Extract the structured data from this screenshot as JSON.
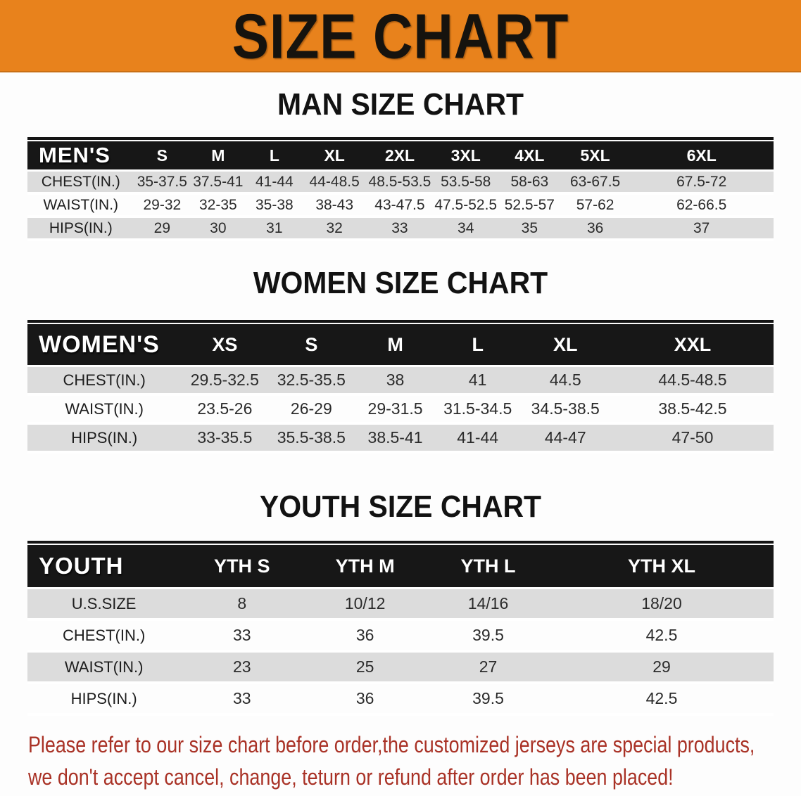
{
  "banner": {
    "title": "SIZE CHART",
    "bg_color": "#e8821c"
  },
  "sections": [
    {
      "title": "MAN SIZE CHART",
      "table": {
        "header_label": "MEN'S",
        "columns": [
          "S",
          "M",
          "L",
          "XL",
          "2XL",
          "3XL",
          "4XL",
          "5XL",
          "6XL"
        ],
        "rows": [
          {
            "label": "CHEST(IN.)",
            "values": [
              "35-37.5",
              "37.5-41",
              "41-44",
              "44-48.5",
              "48.5-53.5",
              "53.5-58",
              "58-63",
              "63-67.5",
              "67.5-72"
            ]
          },
          {
            "label": "WAIST(IN.)",
            "values": [
              "29-32",
              "32-35",
              "35-38",
              "38-43",
              "43-47.5",
              "47.5-52.5",
              "52.5-57",
              "57-62",
              "62-66.5"
            ]
          },
          {
            "label": "HIPS(IN.)",
            "values": [
              "29",
              "30",
              "31",
              "32",
              "33",
              "34",
              "35",
              "36",
              "37"
            ]
          }
        ]
      }
    },
    {
      "title": "WOMEN SIZE CHART",
      "table": {
        "header_label": "WOMEN'S",
        "columns": [
          "XS",
          "S",
          "M",
          "L",
          "XL",
          "XXL"
        ],
        "rows": [
          {
            "label": "CHEST(IN.)",
            "values": [
              "29.5-32.5",
              "32.5-35.5",
              "38",
              "41",
              "44.5",
              "44.5-48.5"
            ]
          },
          {
            "label": "WAIST(IN.)",
            "values": [
              "23.5-26",
              "26-29",
              "29-31.5",
              "31.5-34.5",
              "34.5-38.5",
              "38.5-42.5"
            ]
          },
          {
            "label": "HIPS(IN.)",
            "values": [
              "33-35.5",
              "35.5-38.5",
              "38.5-41",
              "41-44",
              "44-47",
              "47-50"
            ]
          }
        ]
      }
    },
    {
      "title": "YOUTH SIZE CHART",
      "table": {
        "header_label": "YOUTH",
        "columns": [
          "YTH S",
          "YTH M",
          "YTH L",
          "YTH XL"
        ],
        "rows": [
          {
            "label": "U.S.SIZE",
            "values": [
              "8",
              "10/12",
              "14/16",
              "18/20"
            ]
          },
          {
            "label": "CHEST(IN.)",
            "values": [
              "33",
              "36",
              "39.5",
              "42.5"
            ]
          },
          {
            "label": "WAIST(IN.)",
            "values": [
              "23",
              "25",
              "27",
              "29"
            ]
          },
          {
            "label": "HIPS(IN.)",
            "values": [
              "33",
              "36",
              "39.5",
              "42.5"
            ]
          }
        ]
      }
    }
  ],
  "footer_note": {
    "line1": "Please refer to our size chart before order,the customized jerseys are special products,",
    "line2": "we don't accept cancel, change, teturn or refund after order has been placed!",
    "color": "#a93226"
  }
}
